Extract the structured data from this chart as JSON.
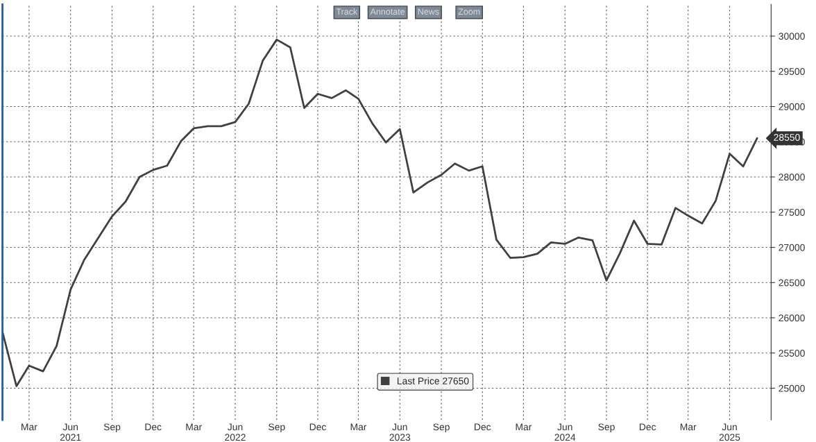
{
  "chart_data": {
    "type": "line",
    "x": [
      "2021-01",
      "2021-02",
      "2021-03",
      "2021-04",
      "2021-05",
      "2021-06",
      "2021-07",
      "2021-08",
      "2021-09",
      "2021-10",
      "2021-11",
      "2021-12",
      "2022-01",
      "2022-02",
      "2022-03",
      "2022-04",
      "2022-05",
      "2022-06",
      "2022-07",
      "2022-08",
      "2022-09",
      "2022-10",
      "2022-11",
      "2022-12",
      "2023-01",
      "2023-02",
      "2023-03",
      "2023-04",
      "2023-05",
      "2023-06",
      "2023-07",
      "2023-08",
      "2023-09",
      "2023-10",
      "2023-11",
      "2023-12",
      "2024-01",
      "2024-02",
      "2024-03",
      "2024-04",
      "2024-05",
      "2024-06",
      "2024-07",
      "2024-08",
      "2024-09",
      "2024-10",
      "2024-11",
      "2024-12",
      "2025-01",
      "2025-02",
      "2025-03",
      "2025-04",
      "2025-05",
      "2025-06",
      "2025-07",
      "2025-08"
    ],
    "series": [
      {
        "name": "Last Price 27650",
        "color": "#404040",
        "values": [
          25800,
          25030,
          25320,
          25240,
          25600,
          26400,
          26820,
          27130,
          27440,
          27650,
          28000,
          28100,
          28160,
          28510,
          28690,
          28720,
          28720,
          28780,
          29040,
          29650,
          29950,
          29840,
          28980,
          29180,
          29120,
          29230,
          29110,
          28760,
          28490,
          28680,
          27780,
          27920,
          28030,
          28190,
          28090,
          28150,
          27110,
          26850,
          26860,
          26910,
          27070,
          27050,
          27140,
          27100,
          26530,
          26920,
          27380,
          27050,
          27040,
          27560,
          27450,
          27340,
          27660,
          28330,
          28150,
          28550
        ]
      }
    ],
    "xlim": [
      "2021-01-01",
      "2025-09-01"
    ],
    "xticks": [
      {
        "value": "2021-03-01",
        "label": "Mar"
      },
      {
        "value": "2021-06-01",
        "label": "Jun\n2021"
      },
      {
        "value": "2021-09-01",
        "label": "Sep"
      },
      {
        "value": "2021-12-01",
        "label": "Dec"
      },
      {
        "value": "2022-03-01",
        "label": "Mar"
      },
      {
        "value": "2022-06-01",
        "label": "Jun\n2022"
      },
      {
        "value": "2022-09-01",
        "label": "Sep"
      },
      {
        "value": "2022-12-01",
        "label": "Dec"
      },
      {
        "value": "2023-03-01",
        "label": "Mar"
      },
      {
        "value": "2023-06-01",
        "label": "Jun\n2023"
      },
      {
        "value": "2023-09-01",
        "label": "Sep"
      },
      {
        "value": "2023-12-01",
        "label": "Dec"
      },
      {
        "value": "2024-03-01",
        "label": "Mar"
      },
      {
        "value": "2024-06-01",
        "label": "Jun\n2024"
      },
      {
        "value": "2024-09-01",
        "label": "Sep"
      },
      {
        "value": "2024-12-01",
        "label": "Dec"
      },
      {
        "value": "2025-03-01",
        "label": "Mar"
      },
      {
        "value": "2025-06-01",
        "label": "Jun\n2025"
      }
    ],
    "ylim": [
      24550,
      30450
    ],
    "yticks": [
      25000,
      25500,
      26000,
      26500,
      27000,
      27500,
      28000,
      28500,
      29000,
      29500,
      30000
    ],
    "grid": true,
    "legend": "bottom",
    "line_style": "solid",
    "marker": "none",
    "annotations": [
      {
        "text": "28550",
        "x": "2025-08",
        "y": 28550
      },
      "Track",
      "Annotate",
      "News",
      "Zoom"
    ]
  }
}
